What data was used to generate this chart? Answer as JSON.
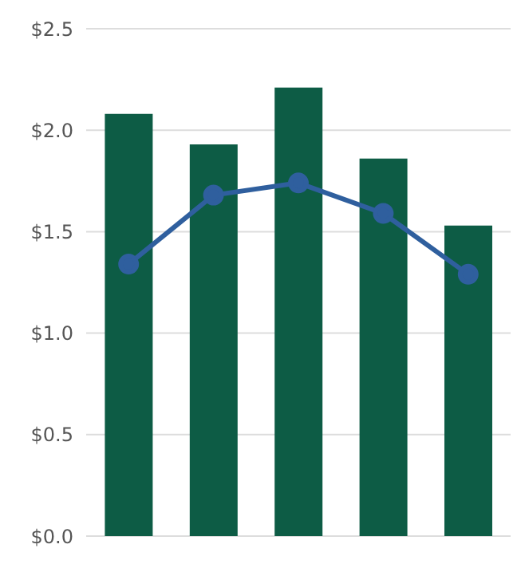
{
  "chart_data": {
    "type": "bar",
    "categories": [
      null,
      null,
      null,
      null,
      null
    ],
    "series": [
      {
        "color": "#0d5c45",
        "values": [
          2.08,
          1.93,
          2.21,
          1.86,
          1.53
        ]
      },
      {
        "type": "line",
        "color": "#2f5f9e",
        "values": [
          1.34,
          1.68,
          1.74,
          1.59,
          1.29
        ]
      }
    ],
    "ylim": [
      0,
      2.5
    ],
    "yticks": [
      {
        "value": 0,
        "label": "$0.0"
      },
      {
        "value": 0.5,
        "label": "$0.5"
      },
      {
        "value": 1,
        "label": "$1.0"
      },
      {
        "value": 1.5,
        "label": "$1.5"
      },
      {
        "value": 2,
        "label": "$2.0"
      },
      {
        "value": 2.5,
        "label": "$2.5"
      }
    ],
    "grid": "y",
    "marker": "circle",
    "line_style": "solid",
    "legend": false
  }
}
